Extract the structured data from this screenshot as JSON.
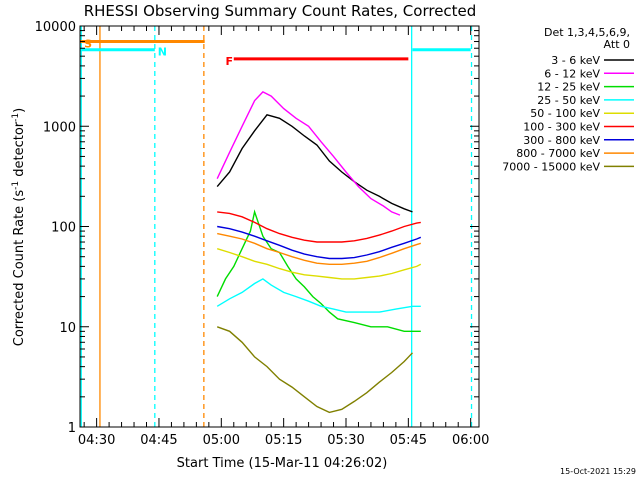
{
  "chart_data": {
    "type": "line",
    "title": "RHESSI Observing Summary Count Rates, Corrected",
    "xlabel": "Start Time (15-Mar-11 04:26:02)",
    "ylabel_main": "Corrected Count Rate (s",
    "ylabel_sup1": "-1",
    "ylabel_mid": " detector",
    "ylabel_sup2": "-1",
    "ylabel_end": ")",
    "y_scale": "log",
    "ylim": [
      1,
      10000
    ],
    "xlim_minutes": [
      26,
      122
    ],
    "y_ticks": [
      {
        "value": 1,
        "label": "1"
      },
      {
        "value": 10,
        "label": "10"
      },
      {
        "value": 100,
        "label": "100"
      },
      {
        "value": 1000,
        "label": "1000"
      },
      {
        "value": 10000,
        "label": "10000"
      }
    ],
    "x_ticks": [
      {
        "minute": 30,
        "label": "04:30"
      },
      {
        "minute": 45,
        "label": "04:45"
      },
      {
        "minute": 60,
        "label": "05:00"
      },
      {
        "minute": 75,
        "label": "05:15"
      },
      {
        "minute": 90,
        "label": "05:30"
      },
      {
        "minute": 105,
        "label": "05:45"
      },
      {
        "minute": 120,
        "label": "06:00"
      }
    ],
    "legend_header": [
      "Det 1,3,4,5,6,9,",
      "Att 0"
    ],
    "series": [
      {
        "name": "3 - 6 keV",
        "color": "#000000",
        "points": [
          [
            59,
            250
          ],
          [
            62,
            350
          ],
          [
            65,
            600
          ],
          [
            68,
            900
          ],
          [
            71,
            1300
          ],
          [
            74,
            1200
          ],
          [
            77,
            1000
          ],
          [
            80,
            800
          ],
          [
            83,
            650
          ],
          [
            86,
            450
          ],
          [
            89,
            350
          ],
          [
            92,
            280
          ],
          [
            95,
            230
          ],
          [
            98,
            200
          ],
          [
            101,
            170
          ],
          [
            104,
            150
          ],
          [
            106,
            140
          ]
        ]
      },
      {
        "name": "6 - 12 keV",
        "color": "#ff00ff",
        "points": [
          [
            59,
            300
          ],
          [
            62,
            550
          ],
          [
            65,
            1000
          ],
          [
            68,
            1800
          ],
          [
            70,
            2200
          ],
          [
            72,
            2000
          ],
          [
            75,
            1500
          ],
          [
            78,
            1200
          ],
          [
            81,
            1000
          ],
          [
            84,
            700
          ],
          [
            87,
            500
          ],
          [
            90,
            350
          ],
          [
            93,
            250
          ],
          [
            96,
            190
          ],
          [
            99,
            160
          ],
          [
            101,
            140
          ],
          [
            103,
            130
          ]
        ]
      },
      {
        "name": "12 - 25 keV",
        "color": "#00dd00",
        "points": [
          [
            59,
            20
          ],
          [
            61,
            30
          ],
          [
            63,
            40
          ],
          [
            65,
            60
          ],
          [
            67,
            90
          ],
          [
            68,
            140
          ],
          [
            70,
            80
          ],
          [
            72,
            60
          ],
          [
            74,
            55
          ],
          [
            76,
            40
          ],
          [
            78,
            30
          ],
          [
            80,
            25
          ],
          [
            82,
            20
          ],
          [
            84,
            17
          ],
          [
            86,
            14
          ],
          [
            88,
            12
          ],
          [
            92,
            11
          ],
          [
            96,
            10
          ],
          [
            100,
            10
          ],
          [
            104,
            9
          ],
          [
            108,
            9
          ]
        ]
      },
      {
        "name": "25 - 50 keV",
        "color": "#00ffff",
        "points": [
          [
            59,
            16
          ],
          [
            62,
            19
          ],
          [
            65,
            22
          ],
          [
            68,
            27
          ],
          [
            70,
            30
          ],
          [
            72,
            26
          ],
          [
            75,
            22
          ],
          [
            78,
            20
          ],
          [
            81,
            18
          ],
          [
            84,
            16
          ],
          [
            87,
            15
          ],
          [
            90,
            14
          ],
          [
            94,
            14
          ],
          [
            98,
            14
          ],
          [
            102,
            15
          ],
          [
            106,
            16
          ],
          [
            108,
            16
          ]
        ]
      },
      {
        "name": "50 - 100 keV",
        "color": "#dddd00",
        "points": [
          [
            59,
            60
          ],
          [
            62,
            55
          ],
          [
            65,
            50
          ],
          [
            68,
            45
          ],
          [
            71,
            42
          ],
          [
            74,
            38
          ],
          [
            77,
            35
          ],
          [
            80,
            33
          ],
          [
            83,
            32
          ],
          [
            86,
            31
          ],
          [
            89,
            30
          ],
          [
            92,
            30
          ],
          [
            95,
            31
          ],
          [
            98,
            32
          ],
          [
            101,
            34
          ],
          [
            104,
            37
          ],
          [
            107,
            40
          ],
          [
            108,
            42
          ]
        ]
      },
      {
        "name": "100 - 300 keV",
        "color": "#ff0000",
        "points": [
          [
            59,
            140
          ],
          [
            62,
            135
          ],
          [
            65,
            125
          ],
          [
            68,
            110
          ],
          [
            71,
            95
          ],
          [
            74,
            85
          ],
          [
            77,
            78
          ],
          [
            80,
            73
          ],
          [
            83,
            70
          ],
          [
            86,
            70
          ],
          [
            89,
            70
          ],
          [
            92,
            72
          ],
          [
            95,
            76
          ],
          [
            98,
            82
          ],
          [
            101,
            90
          ],
          [
            104,
            100
          ],
          [
            107,
            108
          ],
          [
            108,
            110
          ]
        ]
      },
      {
        "name": "300 - 800 keV",
        "color": "#0000dd",
        "points": [
          [
            59,
            100
          ],
          [
            62,
            95
          ],
          [
            65,
            88
          ],
          [
            68,
            80
          ],
          [
            71,
            72
          ],
          [
            74,
            65
          ],
          [
            77,
            58
          ],
          [
            80,
            53
          ],
          [
            83,
            50
          ],
          [
            86,
            48
          ],
          [
            89,
            48
          ],
          [
            92,
            49
          ],
          [
            95,
            52
          ],
          [
            98,
            56
          ],
          [
            101,
            62
          ],
          [
            104,
            68
          ],
          [
            107,
            75
          ],
          [
            108,
            78
          ]
        ]
      },
      {
        "name": "800 - 7000 keV",
        "color": "#ff8800",
        "points": [
          [
            59,
            85
          ],
          [
            62,
            80
          ],
          [
            65,
            75
          ],
          [
            68,
            68
          ],
          [
            71,
            60
          ],
          [
            74,
            55
          ],
          [
            77,
            50
          ],
          [
            80,
            46
          ],
          [
            83,
            43
          ],
          [
            86,
            42
          ],
          [
            89,
            42
          ],
          [
            92,
            43
          ],
          [
            95,
            45
          ],
          [
            98,
            49
          ],
          [
            101,
            54
          ],
          [
            104,
            60
          ],
          [
            107,
            66
          ],
          [
            108,
            68
          ]
        ]
      },
      {
        "name": "7000 - 15000 keV",
        "color": "#808000",
        "points": [
          [
            59,
            10
          ],
          [
            62,
            9
          ],
          [
            65,
            7
          ],
          [
            68,
            5
          ],
          [
            71,
            4
          ],
          [
            74,
            3
          ],
          [
            77,
            2.5
          ],
          [
            80,
            2
          ],
          [
            83,
            1.6
          ],
          [
            86,
            1.4
          ],
          [
            89,
            1.5
          ],
          [
            92,
            1.8
          ],
          [
            95,
            2.2
          ],
          [
            98,
            2.8
          ],
          [
            101,
            3.5
          ],
          [
            104,
            4.5
          ],
          [
            106,
            5.5
          ]
        ]
      }
    ],
    "status_bars": [
      {
        "label": "S",
        "color": "#ff8800",
        "start": 26,
        "end": 56,
        "value": 7000,
        "label_at": 27
      },
      {
        "label": "N",
        "color": "#00ffff",
        "start": 26,
        "end": 44,
        "value": 5800,
        "label_at": 44.7
      },
      {
        "label": "F",
        "color": "#ff0000",
        "start": 63,
        "end": 105,
        "value": 4700,
        "label_at": 61
      },
      {
        "label": "",
        "color": "#00ffff",
        "start": 106,
        "end": 120,
        "value": 5800,
        "label_at": 106
      }
    ],
    "vlines": [
      {
        "minute": 26.3,
        "color": "#00ffff",
        "dashed": false
      },
      {
        "minute": 30.8,
        "color": "#ff8800",
        "dashed": false
      },
      {
        "minute": 44.0,
        "color": "#00ffff",
        "dashed": true
      },
      {
        "minute": 55.8,
        "color": "#ff8800",
        "dashed": true
      },
      {
        "minute": 105.8,
        "color": "#00ffff",
        "dashed": false
      },
      {
        "minute": 120.2,
        "color": "#00ffff",
        "dashed": true
      }
    ]
  },
  "timestamp": "15-Oct-2021 15:29"
}
